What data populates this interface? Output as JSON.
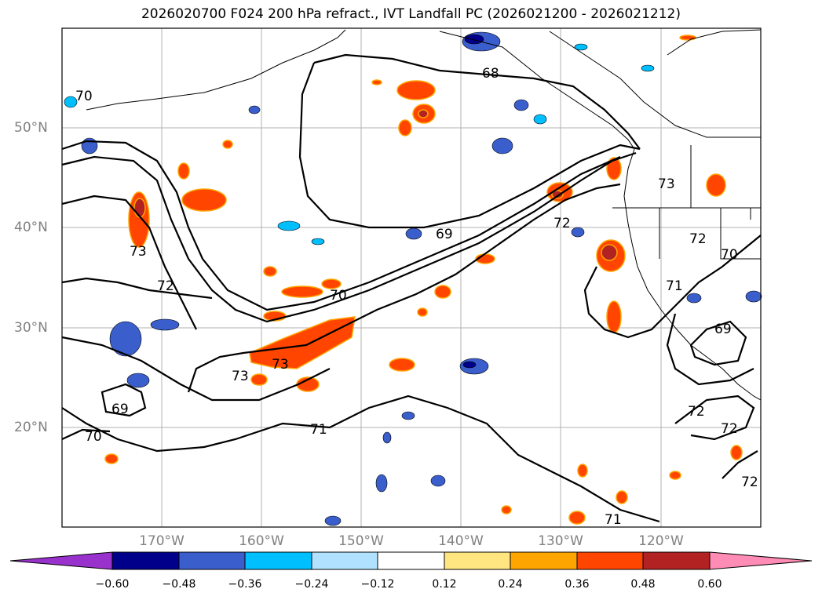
{
  "title": "2026020700 F024 200 hPa refract., IVT Landfall PC (2026021200 - 2026021212)",
  "lat_labels": [
    "50°N",
    "40°N",
    "30°N",
    "20°N"
  ],
  "lon_labels": [
    "170°W",
    "160°W",
    "150°W",
    "140°W",
    "130°W",
    "120°W"
  ],
  "contour_labels": [
    "68",
    "69",
    "70",
    "71",
    "72",
    "73"
  ],
  "colorbar": {
    "ticks": [
      "−0.60",
      "−0.48",
      "−0.36",
      "−0.24",
      "−0.12",
      "0.12",
      "0.24",
      "0.36",
      "0.48",
      "0.60"
    ],
    "colors": [
      "#9932cc",
      "#00008b",
      "#3a5fcd",
      "#00bfff",
      "#b0e2ff",
      "#ffffff",
      "#ffe680",
      "#ffa500",
      "#ff4500",
      "#b22222",
      "#ff8cb4"
    ]
  }
}
